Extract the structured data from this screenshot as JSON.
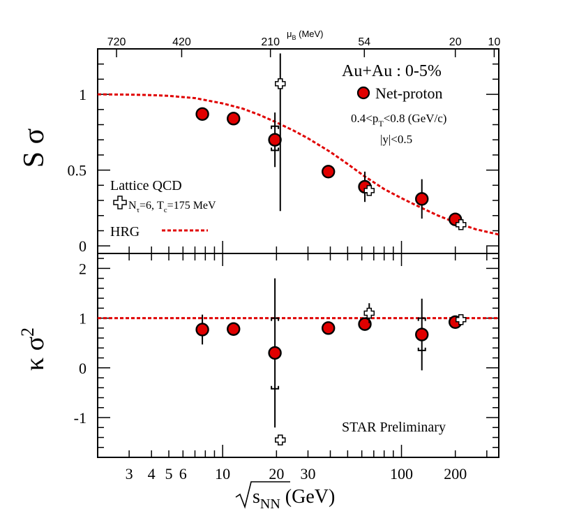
{
  "chart_data": {
    "type": "scatter",
    "xscale": "log",
    "xlim": [
      2,
      350
    ],
    "xlabel_main": "s",
    "xlabel_sub": "NN",
    "xlabel_unit": " (GeV)",
    "x_ticks_labeled": [
      {
        "v": 3,
        "label": "3"
      },
      {
        "v": 4,
        "label": "4"
      },
      {
        "v": 5,
        "label": "5"
      },
      {
        "v": 6,
        "label": "6"
      },
      {
        "v": 10,
        "label": "10"
      },
      {
        "v": 20,
        "label": "20"
      },
      {
        "v": 30,
        "label": "30"
      },
      {
        "v": 100,
        "label": "100"
      },
      {
        "v": 200,
        "label": "200"
      }
    ],
    "top_axis": {
      "label_main": "μ",
      "label_sub": "B",
      "label_unit": " (MeV)",
      "ticks": [
        {
          "sqrt_s": 2.55,
          "label": "720"
        },
        {
          "sqrt_s": 5.9,
          "label": "420"
        },
        {
          "sqrt_s": 18.5,
          "label": "210"
        },
        {
          "sqrt_s": 62,
          "label": "54"
        },
        {
          "sqrt_s": 200,
          "label": "20"
        },
        {
          "sqrt_s": 330,
          "label": "10"
        }
      ]
    },
    "panels": [
      {
        "name": "top",
        "ylabel_main": "S σ",
        "ylim": [
          -0.05,
          1.3
        ],
        "y_ticks": [
          {
            "v": 0,
            "label": "0"
          },
          {
            "v": 0.5,
            "label": "0.5"
          },
          {
            "v": 1,
            "label": "1"
          }
        ],
        "series": [
          {
            "name": "Net-proton",
            "marker": "circle",
            "color": "#e00000",
            "points": [
              {
                "x": 7.7,
                "y": 0.87,
                "err": 0.02
              },
              {
                "x": 11.5,
                "y": 0.84,
                "err": 0.02
              },
              {
                "x": 19.6,
                "y": 0.7,
                "err": 0.18,
                "sys_low": 0.63,
                "sys_high": 0.79
              },
              {
                "x": 39,
                "y": 0.49,
                "err": 0.02
              },
              {
                "x": 62.4,
                "y": 0.39,
                "err": 0.1
              },
              {
                "x": 130,
                "y": 0.31,
                "err": 0.13
              },
              {
                "x": 200,
                "y": 0.175,
                "err": 0.02
              }
            ]
          },
          {
            "name": "Lattice QCD",
            "marker": "cross",
            "points": [
              {
                "x": 21,
                "y": 1.07,
                "err_low": 0.84,
                "err_high": 0.2
              },
              {
                "x": 66,
                "y": 0.365,
                "err": 0.03
              },
              {
                "x": 215,
                "y": 0.14,
                "err": 0.0
              }
            ]
          },
          {
            "name": "HRG",
            "line": "dashed",
            "color": "#e00000",
            "x": [
              2,
              3,
              4,
              5,
              7,
              10,
              13,
              16,
              20,
              25,
              30,
              40,
              50,
              62,
              80,
              100,
              130,
              160,
              200,
              260,
              350
            ],
            "y": [
              1.0,
              0.998,
              0.995,
              0.99,
              0.975,
              0.94,
              0.905,
              0.865,
              0.815,
              0.76,
              0.71,
              0.62,
              0.54,
              0.46,
              0.375,
              0.315,
              0.25,
              0.2,
              0.155,
              0.11,
              0.075
            ]
          }
        ],
        "annotations": {
          "system": "Au+Au : 0-5%",
          "legend_net_proton": "Net-proton",
          "pt_cut_pre": "0.4<p",
          "pt_cut_sub": "T",
          "pt_cut_post": "<0.8 (GeV/c)",
          "y_cut": "|y|<0.5",
          "lattice_title": "Lattice QCD",
          "lattice_n_pre": "N",
          "lattice_n_sub": "τ",
          "lattice_n_mid": "=6, T",
          "lattice_t_sub": "c",
          "lattice_t_post": "=175 MeV",
          "hrg_label": "HRG"
        }
      },
      {
        "name": "bottom",
        "ylabel_main": "κ σ",
        "ylabel_sup": "2",
        "ylim": [
          -1.8,
          2.3
        ],
        "y_ticks": [
          {
            "v": -1,
            "label": "-1"
          },
          {
            "v": 0,
            "label": "0"
          },
          {
            "v": 1,
            "label": "1"
          },
          {
            "v": 2,
            "label": "2"
          }
        ],
        "series": [
          {
            "name": "Net-proton",
            "marker": "circle",
            "color": "#e00000",
            "points": [
              {
                "x": 7.7,
                "y": 0.77,
                "err": 0.3
              },
              {
                "x": 11.5,
                "y": 0.78,
                "err": 0.02
              },
              {
                "x": 19.6,
                "y": 0.3,
                "err": 1.5,
                "sys_low": -0.42,
                "sys_high": 1.0
              },
              {
                "x": 39,
                "y": 0.8,
                "err": 0.02
              },
              {
                "x": 62.4,
                "y": 0.88,
                "err": 0.05
              },
              {
                "x": 130,
                "y": 0.67,
                "err": 0.72,
                "sys_low": 0.35,
                "sys_high": 1.0
              },
              {
                "x": 200,
                "y": 0.92,
                "err": 0.02
              }
            ]
          },
          {
            "name": "Lattice QCD",
            "marker": "cross",
            "points": [
              {
                "x": 21,
                "y": -1.45,
                "err_low": 0.0,
                "err_high": 0.0
              },
              {
                "x": 66,
                "y": 1.1,
                "err": 0.2
              },
              {
                "x": 215,
                "y": 0.97,
                "err": 0.0
              }
            ]
          },
          {
            "name": "HRG",
            "line": "dashed",
            "color": "#e00000",
            "x": [
              2,
              350
            ],
            "y": [
              1.0,
              1.0
            ]
          }
        ],
        "annotations": {
          "watermark": "STAR Preliminary"
        }
      }
    ]
  }
}
